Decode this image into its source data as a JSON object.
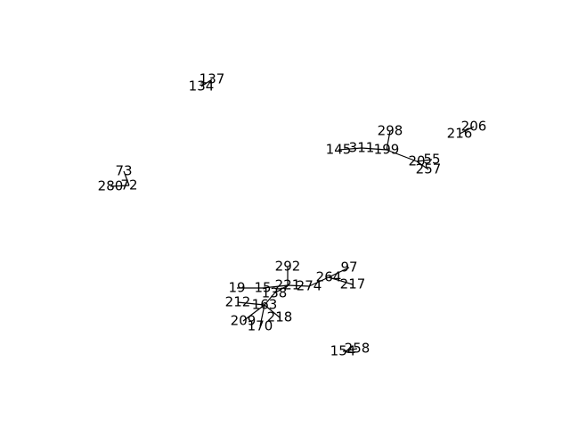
{
  "graph": {
    "type": "network",
    "directed": false,
    "nodes": [
      {
        "id": "137",
        "label": "137"
      },
      {
        "id": "134",
        "label": "134"
      },
      {
        "id": "73",
        "label": "73"
      },
      {
        "id": "280",
        "label": "280"
      },
      {
        "id": "72",
        "label": "72"
      },
      {
        "id": "298",
        "label": "298"
      },
      {
        "id": "145",
        "label": "145"
      },
      {
        "id": "311",
        "label": "311"
      },
      {
        "id": "199",
        "label": "199"
      },
      {
        "id": "20",
        "label": "20"
      },
      {
        "id": "55",
        "label": "55"
      },
      {
        "id": "257",
        "label": "257"
      },
      {
        "id": "206",
        "label": "206"
      },
      {
        "id": "216",
        "label": "216"
      },
      {
        "id": "292",
        "label": "292"
      },
      {
        "id": "97",
        "label": "97"
      },
      {
        "id": "264",
        "label": "264"
      },
      {
        "id": "217",
        "label": "217"
      },
      {
        "id": "19",
        "label": "19"
      },
      {
        "id": "15",
        "label": "15"
      },
      {
        "id": "221",
        "label": "221"
      },
      {
        "id": "274",
        "label": "274"
      },
      {
        "id": "138",
        "label": "138"
      },
      {
        "id": "212",
        "label": "212"
      },
      {
        "id": "163",
        "label": "163"
      },
      {
        "id": "209",
        "label": "209"
      },
      {
        "id": "218",
        "label": "218"
      },
      {
        "id": "170",
        "label": "170"
      },
      {
        "id": "154",
        "label": "154"
      },
      {
        "id": "258",
        "label": "258"
      }
    ],
    "edges": [
      {
        "source": "137",
        "target": "134"
      },
      {
        "source": "73",
        "target": "72"
      },
      {
        "source": "280",
        "target": "72"
      },
      {
        "source": "298",
        "target": "199"
      },
      {
        "source": "145",
        "target": "311"
      },
      {
        "source": "311",
        "target": "199"
      },
      {
        "source": "199",
        "target": "20"
      },
      {
        "source": "20",
        "target": "55"
      },
      {
        "source": "20",
        "target": "257"
      },
      {
        "source": "206",
        "target": "216"
      },
      {
        "source": "292",
        "target": "221"
      },
      {
        "source": "97",
        "target": "264"
      },
      {
        "source": "264",
        "target": "274"
      },
      {
        "source": "264",
        "target": "217"
      },
      {
        "source": "274",
        "target": "221"
      },
      {
        "source": "19",
        "target": "15"
      },
      {
        "source": "15",
        "target": "221"
      },
      {
        "source": "221",
        "target": "138"
      },
      {
        "source": "138",
        "target": "163"
      },
      {
        "source": "212",
        "target": "163"
      },
      {
        "source": "163",
        "target": "209"
      },
      {
        "source": "163",
        "target": "218"
      },
      {
        "source": "163",
        "target": "170"
      },
      {
        "source": "154",
        "target": "258"
      }
    ]
  }
}
